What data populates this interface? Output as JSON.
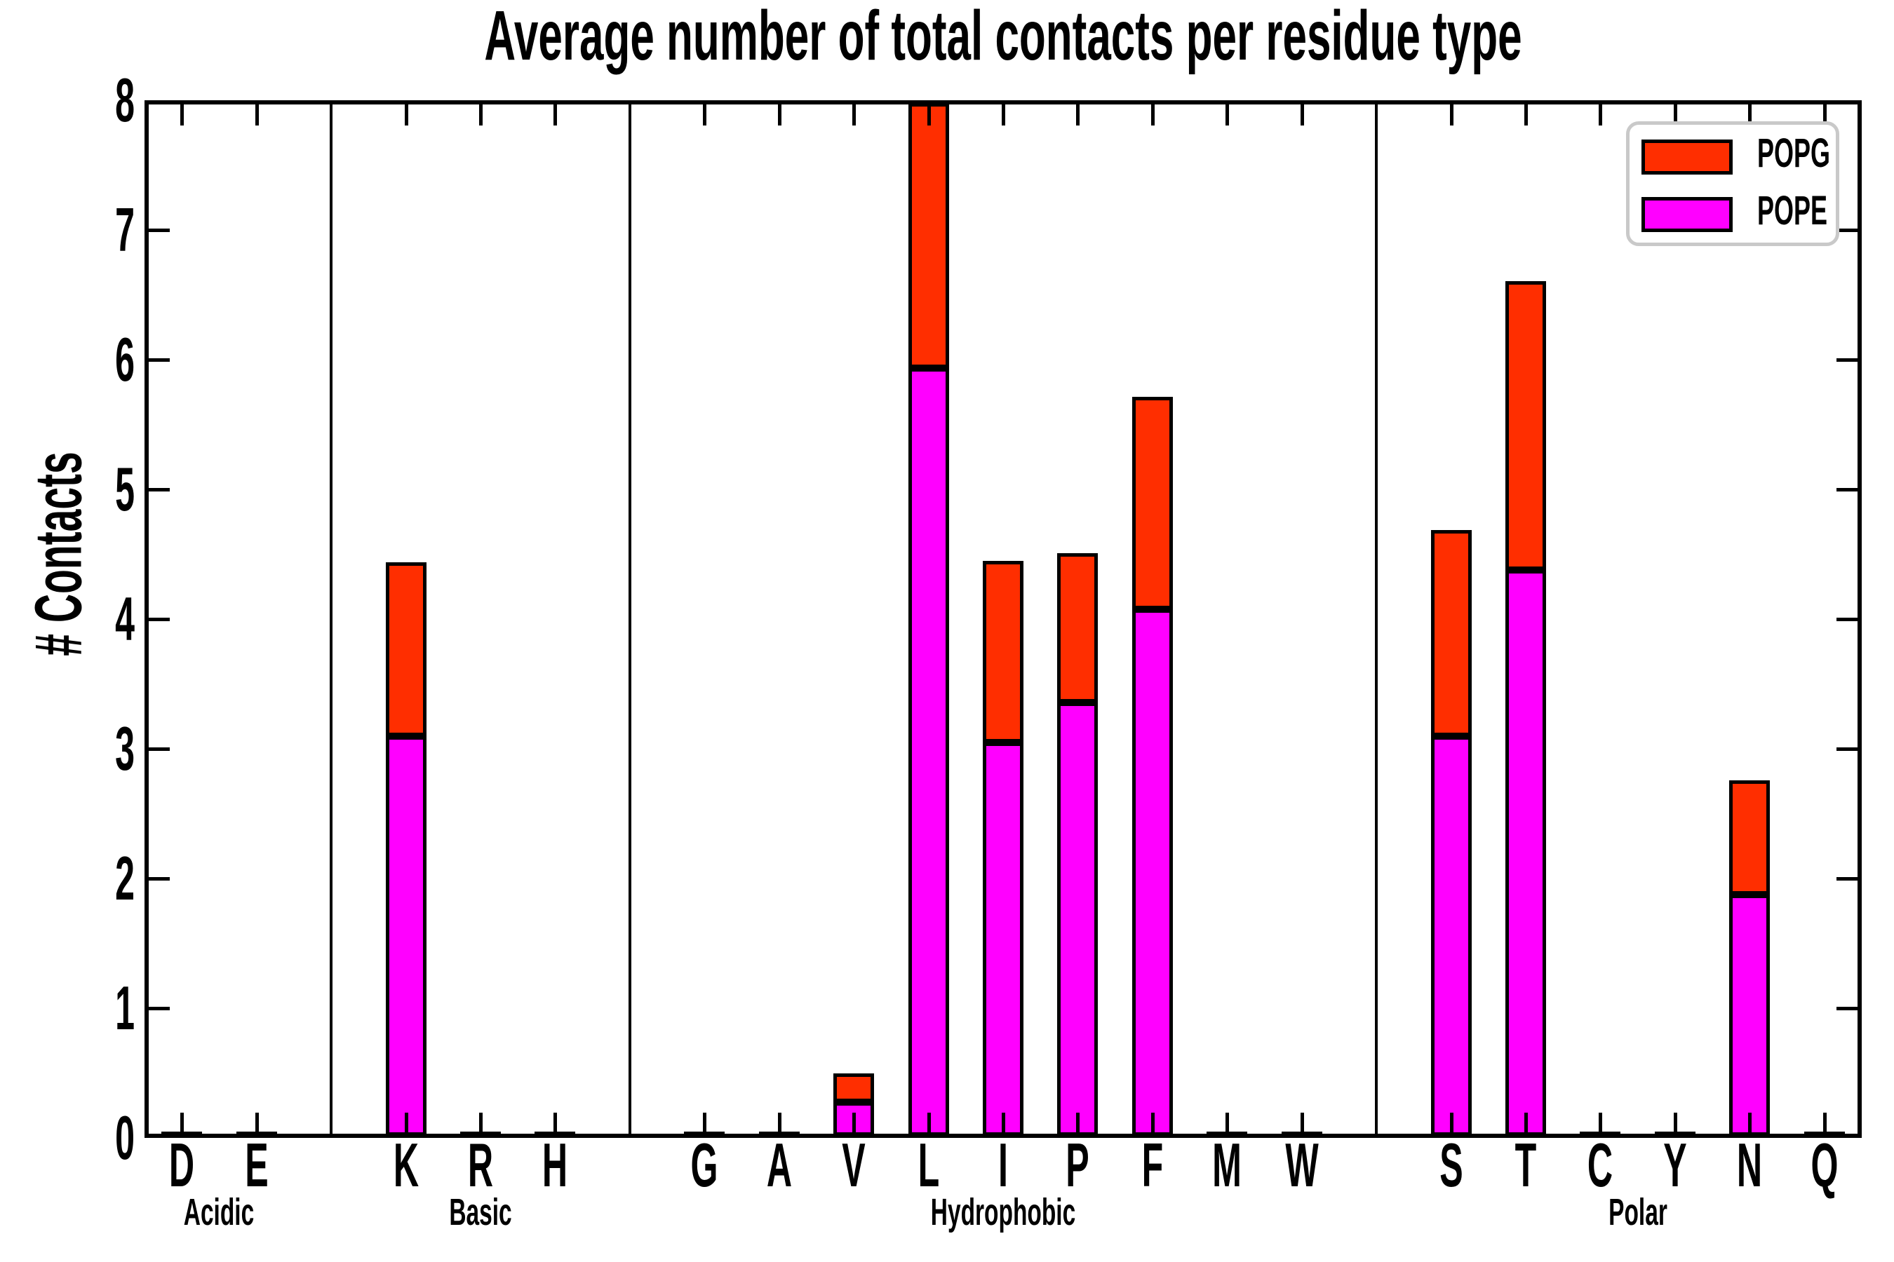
{
  "title": "Average number of total contacts per residue type",
  "y_axis": {
    "label": "# Contacts",
    "ticks": [
      "0",
      "1",
      "2",
      "3",
      "4",
      "5",
      "6",
      "7",
      "8"
    ],
    "min": 0,
    "max": 8
  },
  "legend": {
    "items": [
      {
        "label": "POPG",
        "color": "#ff2e00"
      },
      {
        "label": "POPE",
        "color": "#ff00ff"
      }
    ]
  },
  "colors": {
    "popg": "#ff2e00",
    "pope": "#ff00ff",
    "axis": "#000000",
    "legend_border": "#c9c9c9",
    "background": "#ffffff"
  },
  "chart_data": {
    "type": "bar",
    "stacked": true,
    "title": "Average number of total contacts per residue type",
    "xlabel": "",
    "ylabel": "# Contacts",
    "ylim": [
      0,
      8
    ],
    "yticks": [
      0,
      1,
      2,
      3,
      4,
      5,
      6,
      7,
      8
    ],
    "grid": false,
    "legend_position": "upper right",
    "groups": [
      {
        "label": "Acidic",
        "residues": [
          "D",
          "E"
        ]
      },
      {
        "label": "Basic",
        "residues": [
          "K",
          "R",
          "H"
        ]
      },
      {
        "label": "Hydrophobic",
        "residues": [
          "G",
          "A",
          "V",
          "L",
          "I",
          "P",
          "F",
          "M",
          "W"
        ]
      },
      {
        "label": "Polar",
        "residues": [
          "S",
          "T",
          "C",
          "Y",
          "N",
          "Q"
        ]
      }
    ],
    "categories": [
      "D",
      "E",
      "K",
      "R",
      "H",
      "G",
      "A",
      "V",
      "L",
      "I",
      "P",
      "F",
      "M",
      "W",
      "S",
      "T",
      "C",
      "Y",
      "N",
      "Q"
    ],
    "series": [
      {
        "name": "POPE",
        "color": "#ff00ff",
        "values": [
          0,
          0,
          3.08,
          0,
          0,
          0,
          0,
          0.26,
          5.92,
          3.03,
          3.34,
          4.06,
          0,
          0,
          3.08,
          4.36,
          0,
          0,
          1.86,
          0
        ]
      },
      {
        "name": "POPG",
        "color": "#ff2e00",
        "values": [
          0,
          0,
          1.34,
          0,
          0,
          0,
          0,
          0.22,
          2.04,
          1.4,
          1.15,
          1.64,
          0,
          0,
          1.59,
          2.23,
          0,
          0,
          0.88,
          0
        ]
      }
    ],
    "totals": [
      0,
      0,
      4.42,
      0,
      0,
      0,
      0,
      0.48,
      7.96,
      4.43,
      4.49,
      5.7,
      0,
      0,
      4.67,
      6.59,
      0,
      0,
      2.74,
      0
    ]
  }
}
